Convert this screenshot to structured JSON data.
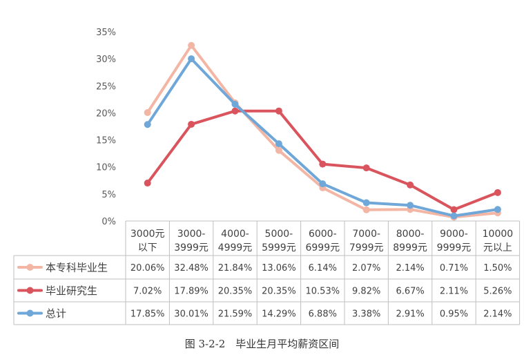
{
  "chart_data": {
    "type": "line",
    "title": "",
    "xlabel": "",
    "ylabel": "",
    "ylim": [
      0,
      35
    ],
    "yticks": [
      0,
      5,
      10,
      15,
      20,
      25,
      30,
      35
    ],
    "ytick_labels": [
      "0%",
      "5%",
      "10%",
      "15%",
      "20%",
      "25%",
      "30%",
      "35%"
    ],
    "categories": [
      [
        "3000元",
        "以下"
      ],
      [
        "3000-",
        "3999元"
      ],
      [
        "4000-",
        "4999元"
      ],
      [
        "5000-",
        "5999元"
      ],
      [
        "6000-",
        "6999元"
      ],
      [
        "7000-",
        "7999元"
      ],
      [
        "8000-",
        "8999元"
      ],
      [
        "9000-",
        "9999元"
      ],
      [
        "10000",
        "元以上"
      ]
    ],
    "series": [
      {
        "name": "本专科毕业生",
        "color": "#F4B6A4",
        "values": [
          20.06,
          32.48,
          21.84,
          13.06,
          6.14,
          2.07,
          2.14,
          0.71,
          1.5
        ],
        "labels": [
          "20.06%",
          "32.48%",
          "21.84%",
          "13.06%",
          "6.14%",
          "2.07%",
          "2.14%",
          "0.71%",
          "1.50%"
        ]
      },
      {
        "name": "毕业研究生",
        "color": "#D9545C",
        "values": [
          7.02,
          17.89,
          20.35,
          20.35,
          10.53,
          9.82,
          6.67,
          2.11,
          5.26
        ],
        "labels": [
          "7.02%",
          "17.89%",
          "20.35%",
          "20.35%",
          "10.53%",
          "9.82%",
          "6.67%",
          "2.11%",
          "5.26%"
        ]
      },
      {
        "name": "总计",
        "color": "#6FA7D8",
        "values": [
          17.85,
          30.01,
          21.59,
          14.29,
          6.88,
          3.38,
          2.91,
          0.95,
          2.14
        ],
        "labels": [
          "17.85%",
          "30.01%",
          "21.59%",
          "14.29%",
          "6.88%",
          "3.38%",
          "2.91%",
          "0.95%",
          "2.14%"
        ]
      }
    ],
    "grid": false,
    "legend": "data-table"
  },
  "caption": "图 3-2-2　毕业生月平均薪资区间"
}
